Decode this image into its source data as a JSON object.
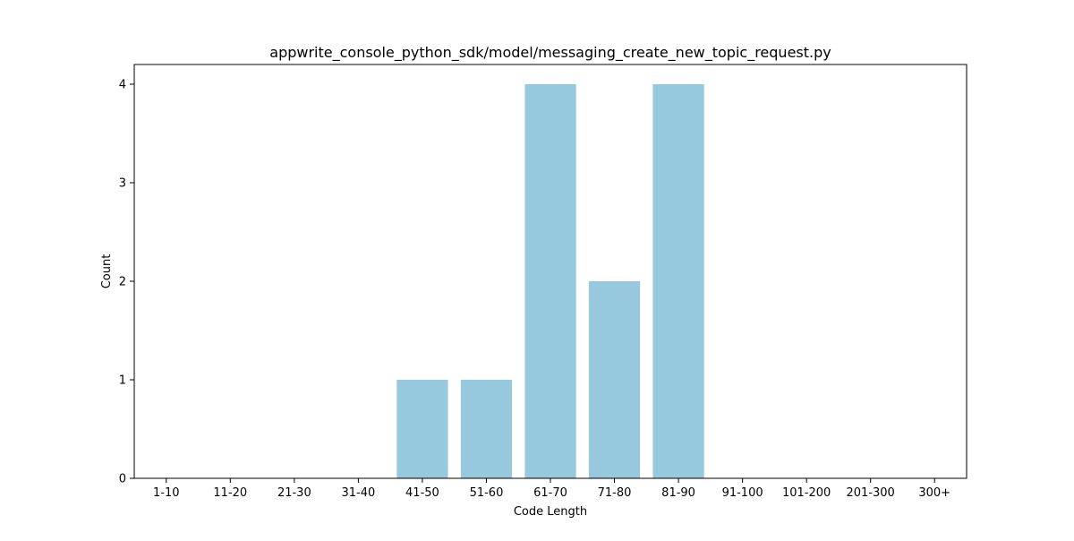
{
  "chart_data": {
    "type": "bar",
    "title": "appwrite_console_python_sdk/model/messaging_create_new_topic_request.py",
    "xlabel": "Code Length",
    "ylabel": "Count",
    "categories": [
      "1-10",
      "11-20",
      "21-30",
      "31-40",
      "41-50",
      "51-60",
      "61-70",
      "71-80",
      "81-90",
      "91-100",
      "101-200",
      "201-300",
      "300+"
    ],
    "values": [
      0,
      0,
      0,
      0,
      1,
      1,
      4,
      2,
      4,
      0,
      0,
      0,
      0
    ],
    "ylim": [
      0,
      4.2
    ],
    "yticks": [
      0,
      1,
      2,
      3,
      4
    ],
    "bar_color": "#96c9dd",
    "grid": false,
    "legend": false
  }
}
